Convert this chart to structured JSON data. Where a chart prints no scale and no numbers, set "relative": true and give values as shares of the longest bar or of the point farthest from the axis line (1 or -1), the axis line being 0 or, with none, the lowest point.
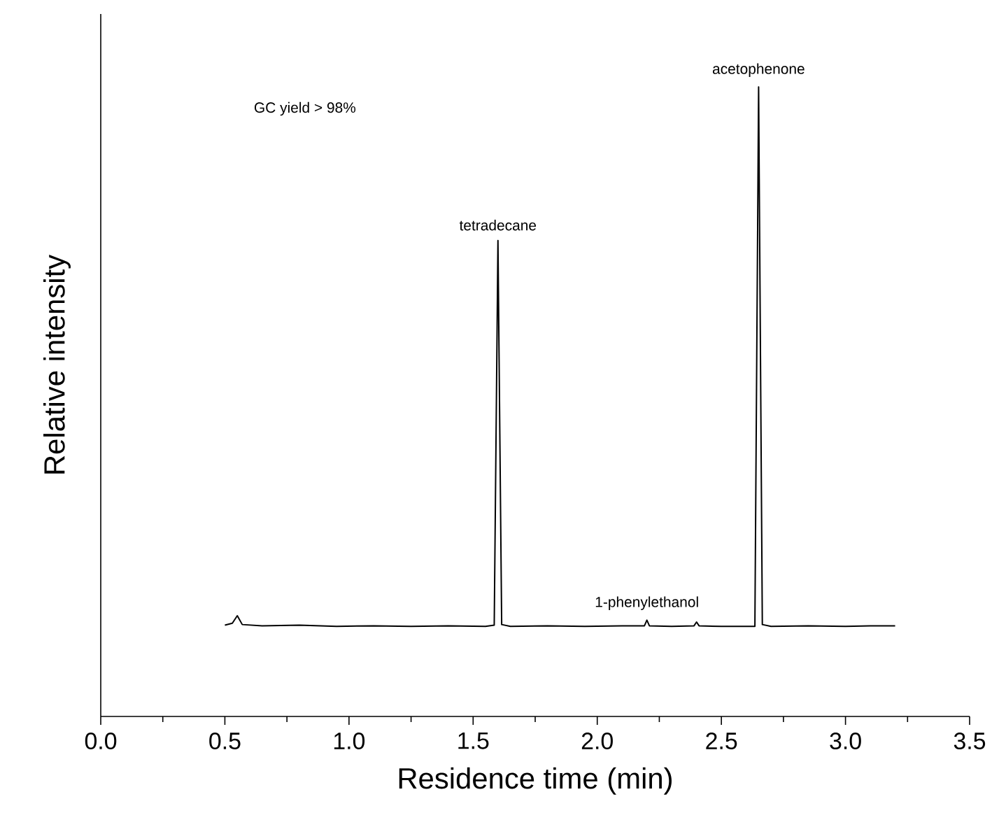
{
  "chart_data": {
    "type": "line",
    "relative": true,
    "xlabel": "Residence time (min)",
    "ylabel": "Relative intensity",
    "xlim": [
      0,
      3.5
    ],
    "xticks": [
      {
        "value": 0,
        "label": "0.0"
      },
      {
        "value": 0.5,
        "label": "0.5"
      },
      {
        "value": 1,
        "label": "1.0"
      },
      {
        "value": 1.5,
        "label": "1.5"
      },
      {
        "value": 2,
        "label": "2.0"
      },
      {
        "value": 2.5,
        "label": "2.5"
      },
      {
        "value": 3,
        "label": "3.0"
      },
      {
        "value": 3.5,
        "label": "3.5"
      }
    ],
    "tick_labels": "x",
    "series": [
      {
        "color": "#000000",
        "x": [
          0.5,
          0.53,
          0.55,
          0.57,
          0.65,
          0.8,
          0.95,
          1.1,
          1.25,
          1.4,
          1.55,
          1.585,
          1.6,
          1.615,
          1.65,
          1.8,
          1.95,
          2.1,
          2.19,
          2.2,
          2.21,
          2.3,
          2.39,
          2.4,
          2.41,
          2.5,
          2.635,
          2.65,
          2.665,
          2.7,
          2.85,
          3.0,
          3.1,
          3.2
        ],
        "values": [
          0.145,
          0.148,
          0.16,
          0.146,
          0.144,
          0.145,
          0.143,
          0.144,
          0.143,
          0.144,
          0.143,
          0.145,
          0.756,
          0.146,
          0.143,
          0.144,
          0.143,
          0.144,
          0.144,
          0.153,
          0.144,
          0.143,
          0.144,
          0.15,
          0.144,
          0.143,
          0.143,
          1.0,
          0.146,
          0.143,
          0.144,
          0.143,
          0.144,
          0.144
        ]
      }
    ],
    "annotations": [
      "GC yield > 98%",
      {
        "text": "tetradecane",
        "x": 1.6,
        "y": 0.756
      },
      {
        "text": "1-phenylethanol",
        "x": 2.2,
        "y": 0.153
      },
      {
        "text": "acetophenone",
        "x": 2.65,
        "y": 1.0
      }
    ]
  }
}
